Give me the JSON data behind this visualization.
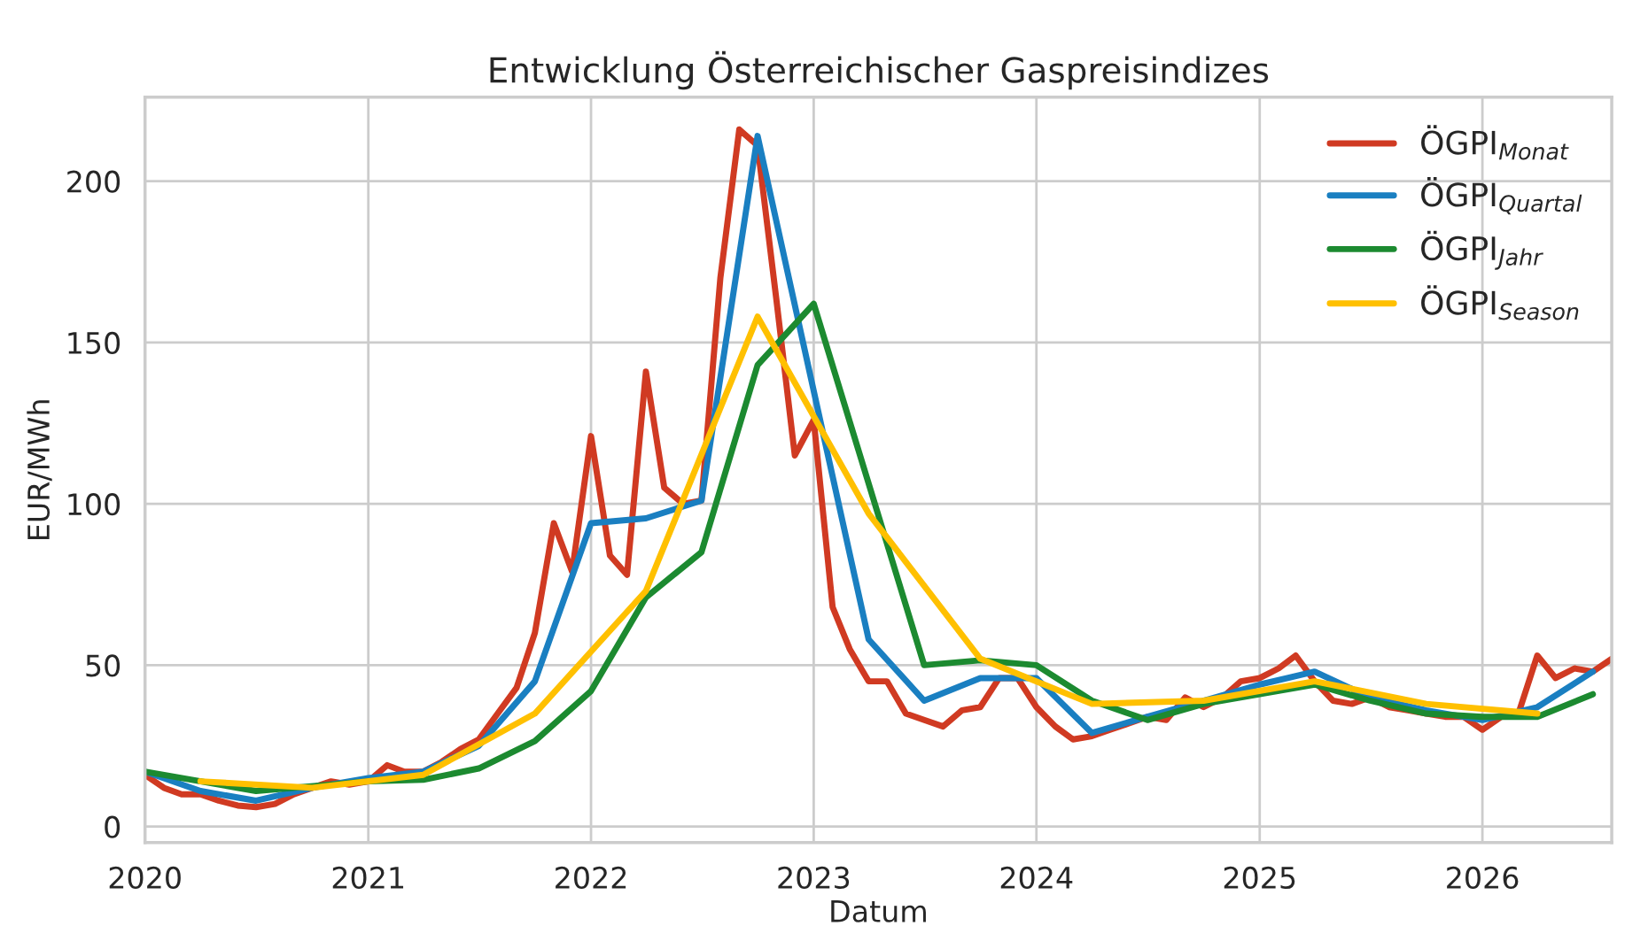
{
  "chart_data": {
    "type": "line",
    "title": "Entwicklung Österreichischer Gaspreisindizes",
    "xlabel": "Datum",
    "ylabel": "EUR/MWh",
    "xlim": [
      "2020-01",
      "2026-08"
    ],
    "xticks": [
      "2020",
      "2021",
      "2022",
      "2023",
      "2024",
      "2025",
      "2026"
    ],
    "ylim": [
      -5,
      226
    ],
    "yticks": [
      0,
      50,
      100,
      150,
      200
    ],
    "grid": true,
    "legend": "top right",
    "line_style": "solid",
    "marker": "none",
    "series": [
      {
        "name": "ÖGPI$_{Monat}$",
        "color": "#d03a22",
        "x": [
          "2020-01",
          "2020-02",
          "2020-03",
          "2020-04",
          "2020-05",
          "2020-06",
          "2020-07",
          "2020-08",
          "2020-09",
          "2020-10",
          "2020-11",
          "2020-12",
          "2021-01",
          "2021-02",
          "2021-03",
          "2021-04",
          "2021-05",
          "2021-06",
          "2021-07",
          "2021-08",
          "2021-09",
          "2021-10",
          "2021-11",
          "2021-12",
          "2022-01",
          "2022-02",
          "2022-03",
          "2022-04",
          "2022-05",
          "2022-06",
          "2022-07",
          "2022-08",
          "2022-09",
          "2022-10",
          "2022-11",
          "2022-12",
          "2023-01",
          "2023-02",
          "2023-03",
          "2023-04",
          "2023-05",
          "2023-06",
          "2023-07",
          "2023-08",
          "2023-09",
          "2023-10",
          "2023-11",
          "2023-12",
          "2024-01",
          "2024-02",
          "2024-03",
          "2024-04",
          "2024-05",
          "2024-06",
          "2024-07",
          "2024-08",
          "2024-09",
          "2024-10",
          "2024-11",
          "2024-12",
          "2025-01",
          "2025-02",
          "2025-03",
          "2025-04",
          "2025-05",
          "2025-06",
          "2025-07",
          "2025-08",
          "2025-09",
          "2025-10",
          "2025-11",
          "2025-12",
          "2026-01",
          "2026-02",
          "2026-03",
          "2026-04",
          "2026-05",
          "2026-06",
          "2026-07",
          "2026-08"
        ],
        "values": [
          16,
          12,
          10,
          10,
          8,
          6.5,
          6,
          7,
          10,
          12,
          14,
          13,
          14,
          19,
          17,
          17,
          20,
          24,
          27,
          35,
          43,
          60,
          94,
          79,
          121,
          84,
          78,
          141,
          105,
          100,
          101,
          170,
          216,
          211,
          163,
          115,
          126,
          68,
          55,
          45,
          45,
          35,
          33,
          31,
          36,
          37,
          46,
          46,
          37,
          31,
          27,
          28,
          30,
          32,
          34,
          33,
          40,
          37,
          40,
          45,
          46,
          49,
          53,
          45,
          39,
          38,
          40,
          37,
          36,
          35,
          34,
          34,
          30,
          34,
          35,
          53,
          46,
          49,
          48,
          52
        ]
      },
      {
        "name": "ÖGPI$_{Quartal}$",
        "color": "#1a7fc1",
        "x": [
          "2020-01",
          "2020-04",
          "2020-07",
          "2020-10",
          "2021-01",
          "2021-04",
          "2021-07",
          "2021-10",
          "2022-01",
          "2022-04",
          "2022-07",
          "2022-10",
          "2023-01",
          "2023-04",
          "2023-07",
          "2023-10",
          "2024-01",
          "2024-04",
          "2024-07",
          "2024-10",
          "2025-01",
          "2025-04",
          "2025-07",
          "2025-10",
          "2026-01",
          "2026-04",
          "2026-07"
        ],
        "values": [
          17,
          11,
          8,
          12,
          15,
          17,
          25,
          45,
          94,
          95.5,
          101,
          214,
          135,
          58,
          39,
          46,
          46,
          29,
          34,
          39,
          44,
          48,
          40,
          36,
          33,
          37,
          48
        ]
      },
      {
        "name": "ÖGPI$_{Jahr}$",
        "color": "#1c8a30",
        "x": [
          "2020-01",
          "2020-07",
          "2021-01",
          "2021-04",
          "2021-07",
          "2021-10",
          "2022-01",
          "2022-04",
          "2022-07",
          "2022-10",
          "2023-01",
          "2023-07",
          "2023-10",
          "2024-01",
          "2024-04",
          "2024-07",
          "2024-10",
          "2025-01",
          "2025-04",
          "2025-07",
          "2025-10",
          "2026-01",
          "2026-04",
          "2026-07"
        ],
        "values": [
          17,
          11,
          14,
          14.5,
          18,
          26.5,
          42,
          71,
          85,
          143,
          162,
          50,
          51.5,
          50,
          39,
          33,
          38,
          41,
          44,
          39,
          35,
          34,
          34,
          41
        ]
      },
      {
        "name": "ÖGPI$_{Season}$",
        "color": "#ffc000",
        "x": [
          "2020-04",
          "2020-10",
          "2021-04",
          "2021-10",
          "2022-04",
          "2022-10",
          "2023-04",
          "2023-10",
          "2024-04",
          "2024-10",
          "2025-04",
          "2025-10",
          "2026-04"
        ],
        "values": [
          14,
          12,
          16,
          35,
          73,
          158,
          97,
          52,
          38,
          39,
          45,
          38,
          35
        ]
      }
    ]
  }
}
